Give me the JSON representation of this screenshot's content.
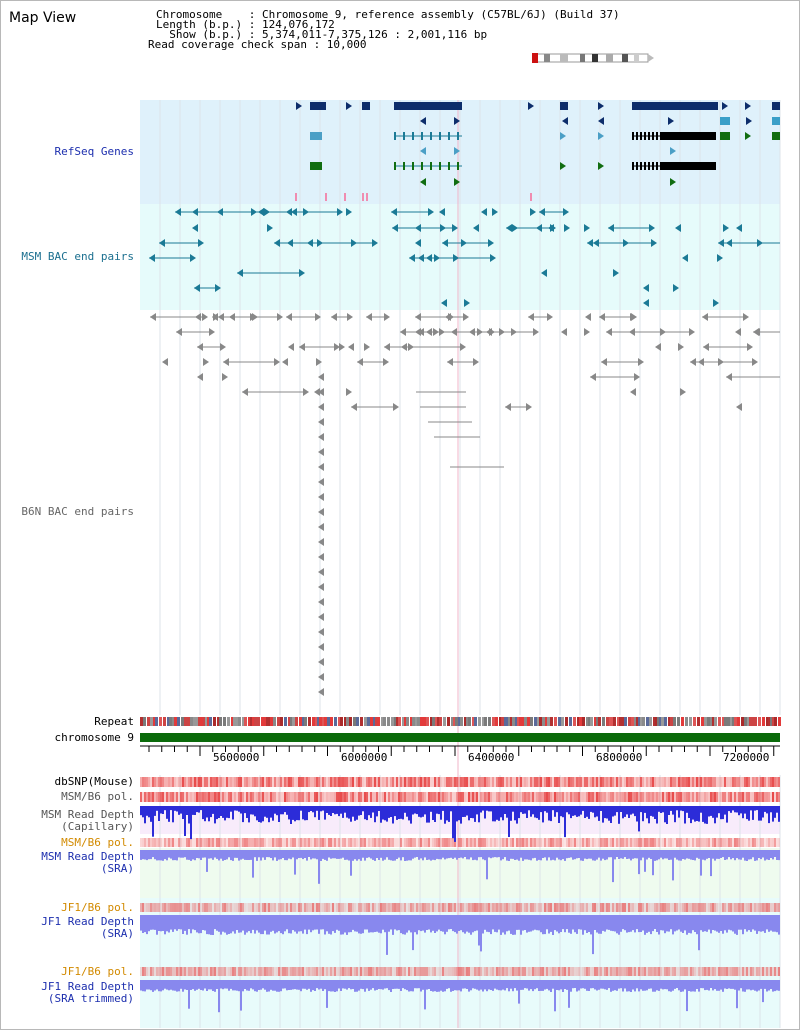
{
  "title": "Map View",
  "info": {
    "chromosome_line": "Chromosome    : Chromosome 9, reference assembly (C57BL/6J) (Build 37)",
    "length_line": "Length (b.p.) : 124,076,172",
    "show_line": "  Show (b.p.) : 5,374,011-7,375,126 : 2,001,116 bp",
    "span_line": "Read coverage check span : 10,000"
  },
  "tracks": {
    "refseq": "RefSeq Genes",
    "msm_bac": "MSM BAC end pairs",
    "b6n_bac": "B6N BAC end pairs",
    "repeat": "Repeat",
    "chromosome": "chromosome 9"
  },
  "axis": {
    "ticks": [
      "5600000",
      "6000000",
      "6400000",
      "6800000",
      "7200000"
    ]
  },
  "coverage": {
    "dbsnp": "dbSNP(Mouse)",
    "msm_pol1": "MSM/B6 pol.",
    "msm_depth_cap_1": "MSM Read Depth",
    "msm_depth_cap_2": "(Capillary)",
    "msm_pol2": "MSM/B6 pol.",
    "msm_depth_sra_1": "MSM Read Depth",
    "msm_depth_sra_2": "(SRA)",
    "jf1_pol1": "JF1/B6 pol.",
    "jf1_depth_sra_1": "JF1 Read Depth",
    "jf1_depth_sra_2": "(SRA)",
    "jf1_pol2": "JF1/B6 pol.",
    "jf1_depth_trim_1": "JF1 Read Depth",
    "jf1_depth_trim_2": "(SRA trimmed)"
  },
  "colors": {
    "refseq_bg": "#dff1fb",
    "msm_bg": "#e6fbfb",
    "navy": "#0d2d6b",
    "teal": "#1b7a96",
    "green": "#116d11",
    "grey": "#888888",
    "depth_blue": "#2c2cd8",
    "depth_lavender": "#8888ee",
    "snp_red": "#e84a4a",
    "label_blue": "#1d2fae",
    "label_teal": "#1b6f8f",
    "label_orange": "#d28a00",
    "label_grey": "#666666",
    "chrom_green": "#0a6a0a"
  }
}
